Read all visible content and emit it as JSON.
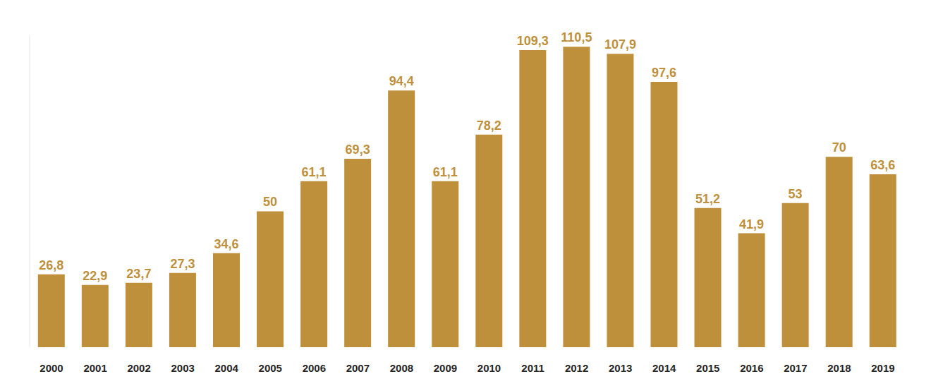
{
  "chart_data": {
    "type": "bar",
    "categories": [
      "2000",
      "2001",
      "2002",
      "2003",
      "2004",
      "2005",
      "2006",
      "2007",
      "2008",
      "2009",
      "2010",
      "2011",
      "2012",
      "2013",
      "2014",
      "2015",
      "2016",
      "2017",
      "2018",
      "2019"
    ],
    "values": [
      26.8,
      22.9,
      23.7,
      27.3,
      34.6,
      50,
      61.1,
      69.3,
      94.4,
      61.1,
      78.2,
      109.3,
      110.5,
      107.9,
      97.6,
      51.2,
      41.9,
      53,
      70,
      63.6
    ],
    "value_labels": [
      "26,8",
      "22,9",
      "23,7",
      "27,3",
      "34,6",
      "50",
      "61,1",
      "69,3",
      "94,4",
      "61,1",
      "78,2",
      "109,3",
      "110,5",
      "107,9",
      "97,6",
      "51,2",
      "41,9",
      "53",
      "70",
      "63,6"
    ],
    "color": "#bf903b",
    "ylim": [
      0,
      115
    ],
    "data_labels": true,
    "tick_labels": "x",
    "grid": false
  }
}
